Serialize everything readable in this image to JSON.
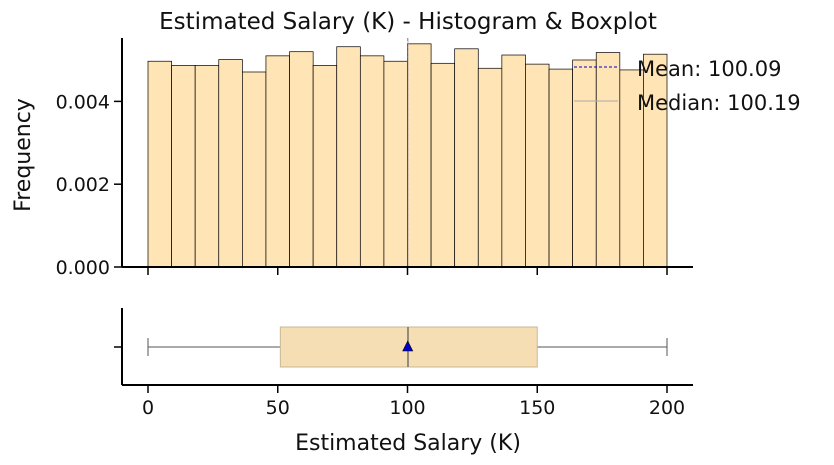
{
  "chart_data": {
    "type": "histogram+boxplot",
    "title": "Estimated Salary (K) - Histogram & Boxplot",
    "xlabel": "Estimated Salary (K)",
    "ylabel": "Frequency",
    "xlim": [
      -10,
      210
    ],
    "ylim": [
      0,
      0.0056
    ],
    "x_ticks": [
      0,
      50,
      100,
      150,
      200
    ],
    "x_tick_labels": [
      "0",
      "50",
      "100",
      "150",
      "200"
    ],
    "y_ticks": [
      0.0,
      0.002,
      0.004
    ],
    "y_tick_labels": [
      "0.000",
      "0.002",
      "0.004"
    ],
    "bin_width": 9.09,
    "bin_edges": [
      0,
      9.09,
      18.18,
      27.27,
      36.36,
      45.45,
      54.55,
      63.64,
      72.73,
      81.82,
      90.91,
      100,
      109.09,
      118.18,
      127.27,
      136.36,
      145.45,
      154.55,
      163.64,
      172.73,
      181.82,
      190.91,
      200
    ],
    "values": [
      0.00497,
      0.00487,
      0.00487,
      0.00501,
      0.00471,
      0.0051,
      0.0052,
      0.00487,
      0.00532,
      0.0051,
      0.00497,
      0.00539,
      0.00492,
      0.00527,
      0.0048,
      0.00512,
      0.0049,
      0.00478,
      0.005,
      0.00518,
      0.00476,
      0.00514
    ],
    "mean": 100.09,
    "median": 100.19,
    "boxplot": {
      "min": 0,
      "q1": 51,
      "median": 100.19,
      "q3": 150,
      "max": 200,
      "mean": 100.09
    },
    "legend": {
      "position": "top-right",
      "entries": [
        "Mean: 100.09",
        "Median: 100.19"
      ]
    },
    "colors": {
      "bar_fill": "#FFE4B5",
      "bar_edge": "#000000",
      "box_fill": "#F5DEB3",
      "mean_line": "#0000CD",
      "median_line": "#A9A9A9",
      "mean_marker": "#0000CD",
      "whisker": "#555555"
    },
    "grid": false
  }
}
